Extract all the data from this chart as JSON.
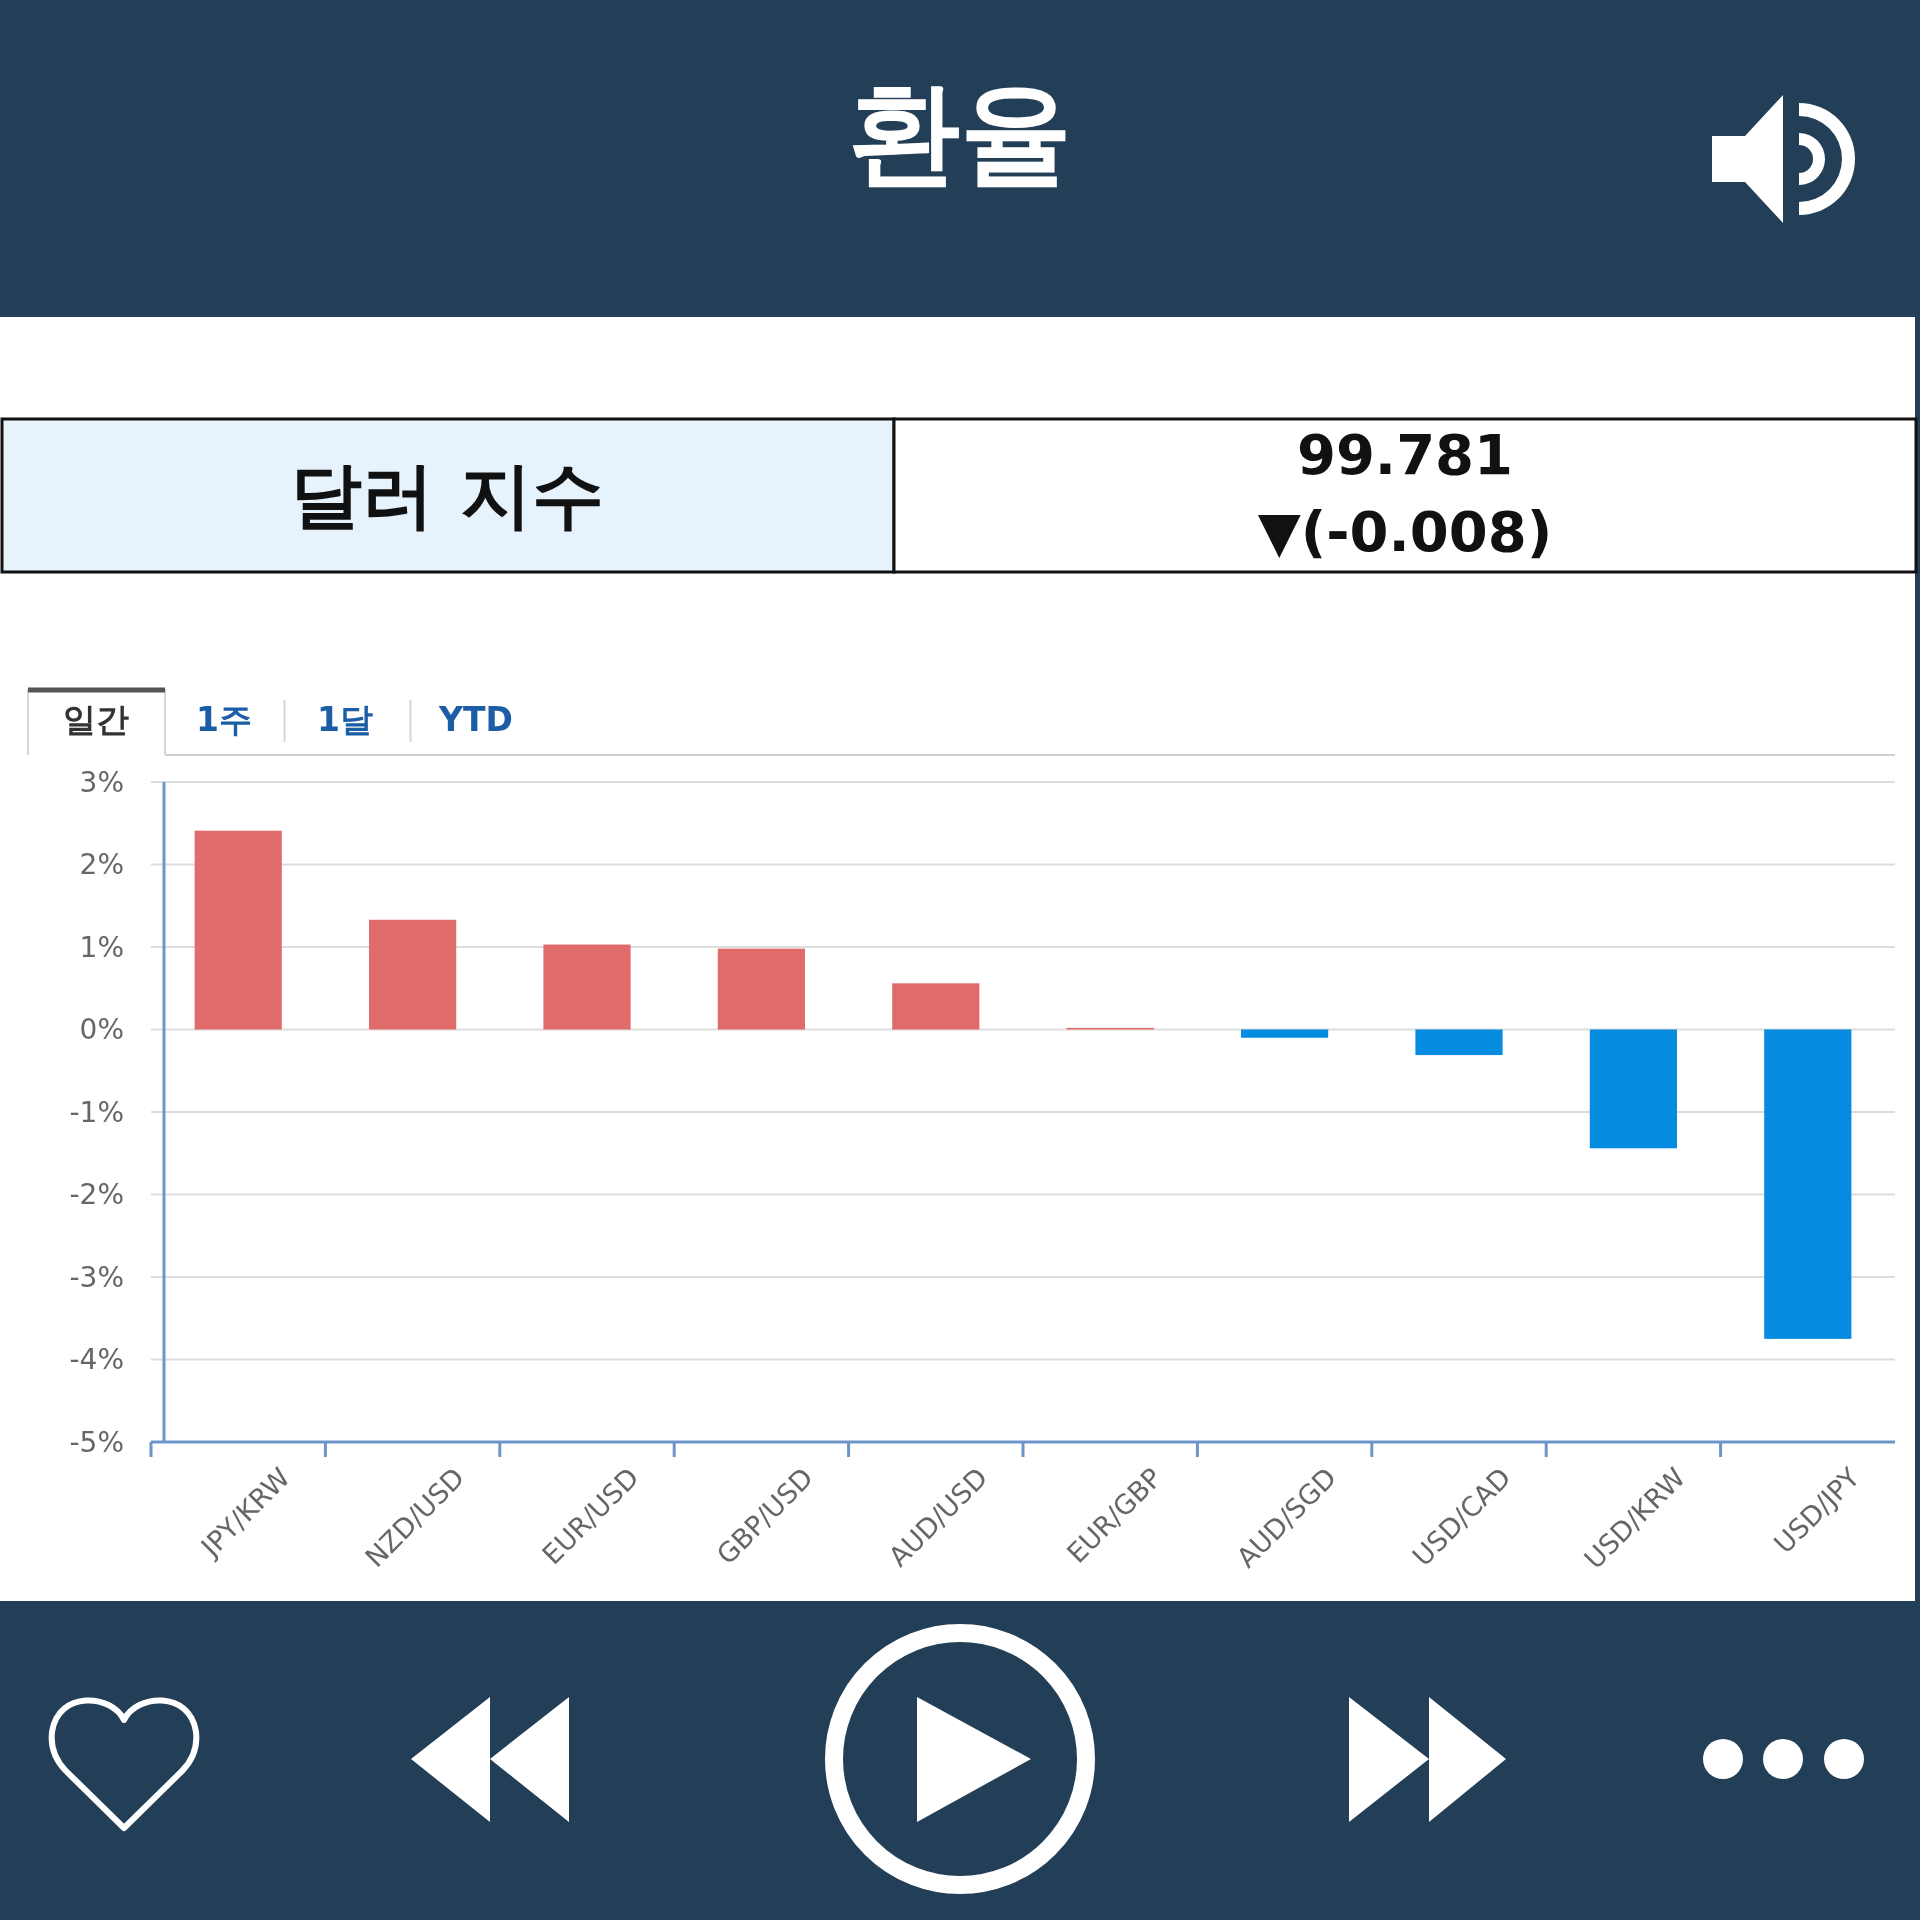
{
  "chart_data": {
    "type": "bar",
    "title": "환율",
    "categories": [
      "JPY/KRW",
      "NZD/USD",
      "EUR/USD",
      "GBP/USD",
      "AUD/USD",
      "EUR/GBP",
      "AUD/SGD",
      "USD/CAD",
      "USD/KRW",
      "USD/JPY"
    ],
    "values": [
      2.41,
      1.33,
      1.03,
      0.98,
      0.56,
      0.02,
      -0.1,
      -0.31,
      -1.44,
      -3.75
    ],
    "colors": [
      "#e06b6b",
      "#e06b6b",
      "#e06b6b",
      "#e06b6b",
      "#e06b6b",
      "#e06b6b",
      "#058ce0",
      "#058ce0",
      "#058ce0",
      "#058ce0"
    ],
    "ylim": [
      -5,
      3
    ],
    "yticks": [
      {
        "value": -5,
        "label": "-5%"
      },
      {
        "value": -4,
        "label": "-4%"
      },
      {
        "value": -3,
        "label": "-3%"
      },
      {
        "value": -2,
        "label": "-2%"
      },
      {
        "value": -1,
        "label": "-1%"
      },
      {
        "value": 0,
        "label": "0%"
      },
      {
        "value": 1,
        "label": "1%"
      },
      {
        "value": 2,
        "label": "2%"
      },
      {
        "value": 3,
        "label": "3%"
      }
    ],
    "grid": "y",
    "annotations": [
      "달러 지수",
      "99.781",
      "▼(-0.008)",
      "일간",
      "1주",
      "1달",
      "YTD"
    ]
  }
}
